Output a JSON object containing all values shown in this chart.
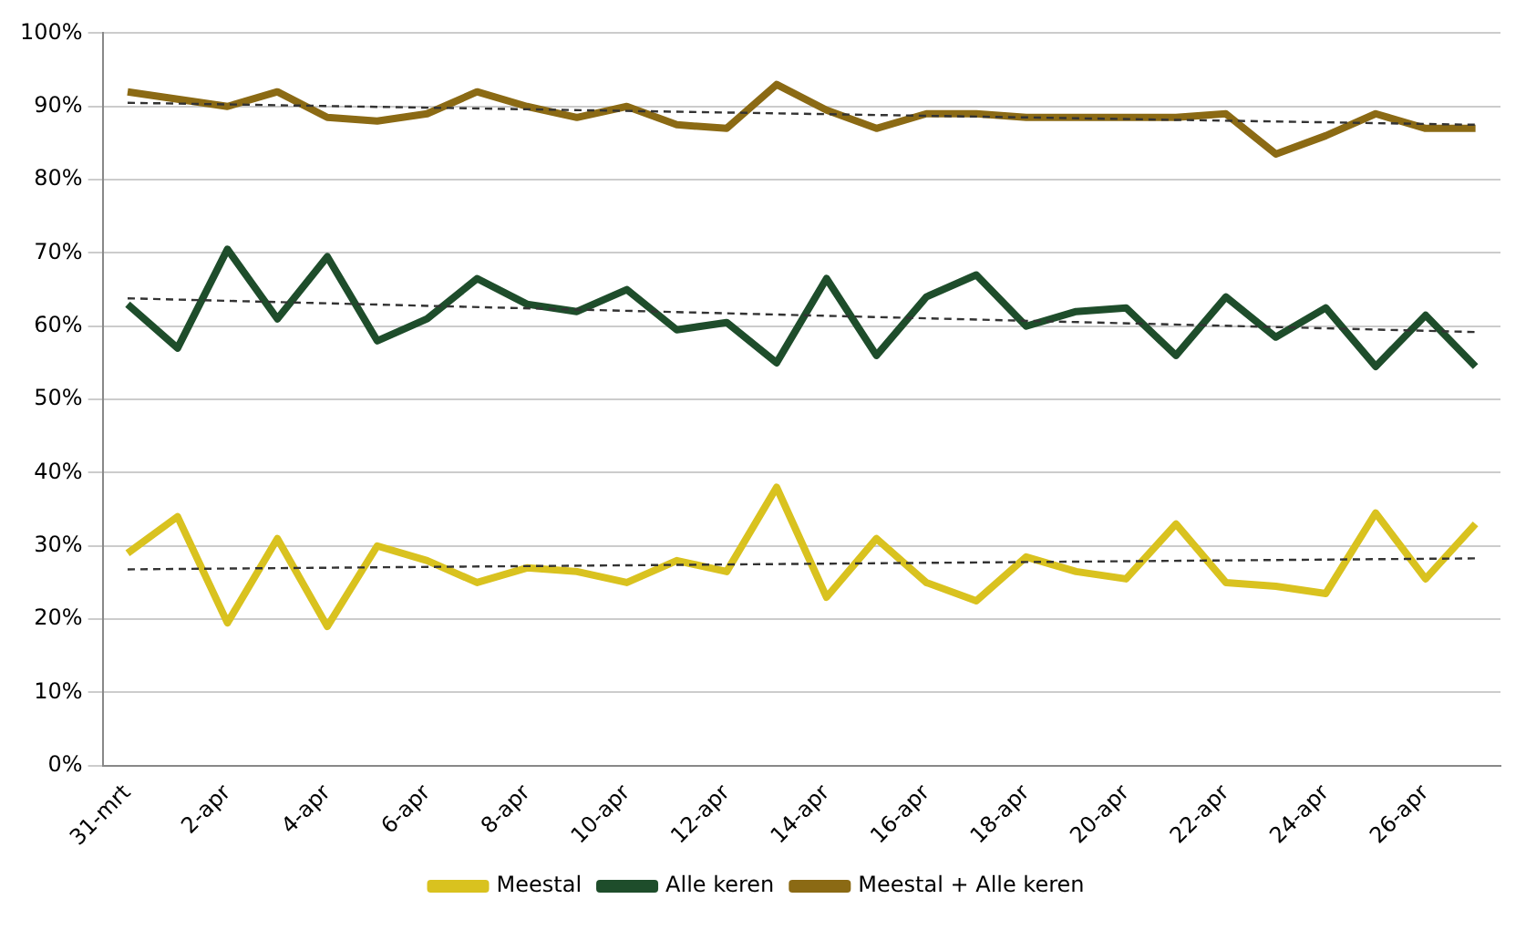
{
  "chart_data": {
    "type": "line",
    "categories": [
      "31-mrt",
      null,
      "2-apr",
      null,
      "4-apr",
      null,
      "6-apr",
      null,
      "8-apr",
      null,
      "10-apr",
      null,
      "12-apr",
      null,
      "14-apr",
      null,
      "16-apr",
      null,
      "18-apr",
      null,
      "20-apr",
      null,
      "22-apr",
      null,
      "24-apr",
      null,
      "26-apr",
      null
    ],
    "ylim": [
      0,
      100
    ],
    "yticks": [
      {
        "value": 0,
        "label": "0%"
      },
      {
        "value": 10,
        "label": "10%"
      },
      {
        "value": 20,
        "label": "20%"
      },
      {
        "value": 30,
        "label": "30%"
      },
      {
        "value": 40,
        "label": "40%"
      },
      {
        "value": 50,
        "label": "50%"
      },
      {
        "value": 60,
        "label": "60%"
      },
      {
        "value": 70,
        "label": "70%"
      },
      {
        "value": 80,
        "label": "80%"
      },
      {
        "value": 90,
        "label": "90%"
      },
      {
        "value": 100,
        "label": "100%"
      }
    ],
    "grid": "y",
    "legend": "bottom",
    "marker": "none",
    "series": [
      {
        "name": "Meestal",
        "color": "#d9c21f",
        "values": [
          29,
          34,
          19.5,
          31,
          19,
          30,
          28,
          25,
          27,
          26.5,
          25,
          28,
          26.5,
          38,
          23,
          31,
          25,
          22.5,
          28.5,
          26.5,
          25.5,
          33,
          25,
          24.5,
          23.5,
          34.5,
          25.5,
          33
        ]
      },
      {
        "name": "Alle keren",
        "color": "#1e4d2b",
        "values": [
          63,
          57,
          70.5,
          61,
          69.5,
          58,
          61,
          66.5,
          63,
          62,
          65,
          59.5,
          60.5,
          55,
          66.5,
          56,
          64,
          67,
          60,
          62,
          62.5,
          56,
          64,
          58.5,
          62.5,
          54.5,
          61.5,
          54.5
        ]
      },
      {
        "name": "Meestal + Alle keren",
        "color": "#8b6a14",
        "values": [
          92,
          91,
          90,
          92,
          88.5,
          88,
          89,
          92,
          90,
          88.5,
          90,
          87.5,
          87,
          93,
          89.5,
          87,
          89,
          89,
          88.5,
          88.5,
          88.5,
          88.5,
          89,
          83.5,
          86,
          89,
          87,
          87
        ]
      },
      {
        "type": "line",
        "color": "#333333",
        "line_style": "dashed",
        "values": [
          26.8,
          null,
          null,
          null,
          null,
          null,
          null,
          null,
          null,
          null,
          null,
          null,
          null,
          null,
          null,
          null,
          null,
          null,
          null,
          null,
          null,
          null,
          null,
          null,
          null,
          null,
          null,
          28.3
        ]
      },
      {
        "type": "line",
        "color": "#333333",
        "line_style": "dashed",
        "values": [
          63.8,
          null,
          null,
          null,
          null,
          null,
          null,
          null,
          null,
          null,
          null,
          null,
          null,
          null,
          null,
          null,
          null,
          null,
          null,
          null,
          null,
          null,
          null,
          null,
          null,
          null,
          null,
          59.2
        ]
      },
      {
        "type": "line",
        "color": "#333333",
        "line_style": "dashed",
        "values": [
          90.5,
          null,
          null,
          null,
          null,
          null,
          null,
          null,
          null,
          null,
          null,
          null,
          null,
          null,
          null,
          null,
          null,
          null,
          null,
          null,
          null,
          null,
          null,
          null,
          null,
          null,
          null,
          87.5
        ]
      }
    ]
  }
}
